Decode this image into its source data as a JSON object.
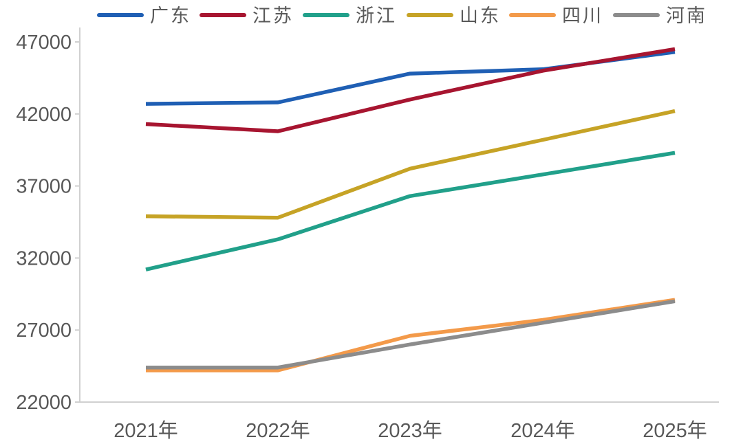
{
  "chart_data": {
    "type": "line",
    "title": "",
    "xlabel": "",
    "ylabel": "",
    "categories": [
      "2021年",
      "2022年",
      "2023年",
      "2024年",
      "2025年"
    ],
    "ylim": [
      22000,
      47000
    ],
    "yticks": [
      22000,
      27000,
      32000,
      37000,
      42000,
      47000
    ],
    "grid": false,
    "legend_position": "top",
    "series": [
      {
        "name": "广东",
        "color": "#1f5fb4",
        "values": [
          42700,
          42800,
          44800,
          45100,
          46300
        ]
      },
      {
        "name": "江苏",
        "color": "#a71530",
        "values": [
          41300,
          40800,
          43000,
          45000,
          46500
        ]
      },
      {
        "name": "浙江",
        "color": "#21a08a",
        "values": [
          31200,
          33300,
          36300,
          37800,
          39300
        ]
      },
      {
        "name": "山东",
        "color": "#c6a326",
        "values": [
          34900,
          34800,
          38200,
          40200,
          42200
        ]
      },
      {
        "name": "四川",
        "color": "#f39a4a",
        "values": [
          24200,
          24200,
          26600,
          27700,
          29100
        ]
      },
      {
        "name": "河南",
        "color": "#8c8c8c",
        "values": [
          24400,
          24400,
          26000,
          27500,
          29000
        ]
      }
    ]
  }
}
